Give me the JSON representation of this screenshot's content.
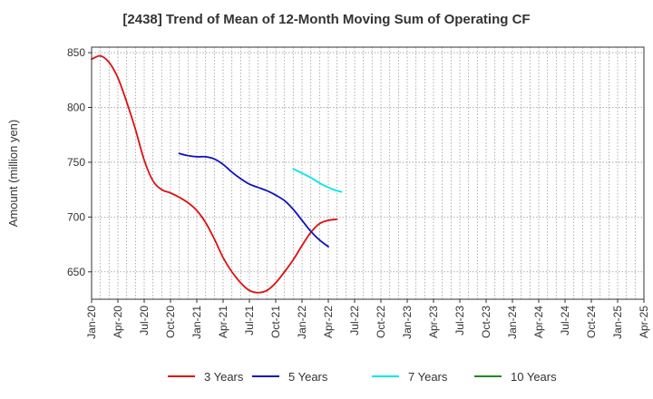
{
  "chart_data": {
    "type": "line",
    "title": "[2438]  Trend of Mean of 12-Month Moving Sum of Operating CF",
    "ylabel": "Amount (million yen)",
    "xlabel": "",
    "ylim": [
      625,
      855
    ],
    "yticks": [
      650,
      700,
      750,
      800,
      850
    ],
    "categories": [
      "Jan-20",
      "Apr-20",
      "Jul-20",
      "Oct-20",
      "Jan-21",
      "Apr-21",
      "Jul-21",
      "Oct-21",
      "Jan-22",
      "Apr-22",
      "Jul-22",
      "Oct-22",
      "Jan-23",
      "Apr-23",
      "Jul-23",
      "Oct-23",
      "Jan-24",
      "Apr-24",
      "Jul-24",
      "Oct-24",
      "Jan-25",
      "Apr-25"
    ],
    "grid": true,
    "legend_position": "bottom",
    "series": [
      {
        "name": "3 Years",
        "color": "#dd1111",
        "points": [
          {
            "x": 0,
            "y": 844
          },
          {
            "x": 1,
            "y": 847
          },
          {
            "x": 2,
            "y": 841
          },
          {
            "x": 3,
            "y": 827
          },
          {
            "x": 4,
            "y": 805
          },
          {
            "x": 5,
            "y": 780
          },
          {
            "x": 6,
            "y": 752
          },
          {
            "x": 7,
            "y": 733
          },
          {
            "x": 8,
            "y": 725
          },
          {
            "x": 9,
            "y": 722
          },
          {
            "x": 10,
            "y": 718
          },
          {
            "x": 11,
            "y": 713
          },
          {
            "x": 12,
            "y": 706
          },
          {
            "x": 13,
            "y": 695
          },
          {
            "x": 14,
            "y": 680
          },
          {
            "x": 15,
            "y": 663
          },
          {
            "x": 16,
            "y": 650
          },
          {
            "x": 17,
            "y": 640
          },
          {
            "x": 18,
            "y": 633
          },
          {
            "x": 19,
            "y": 631
          },
          {
            "x": 20,
            "y": 633
          },
          {
            "x": 21,
            "y": 640
          },
          {
            "x": 22,
            "y": 650
          },
          {
            "x": 23,
            "y": 661
          },
          {
            "x": 24,
            "y": 674
          },
          {
            "x": 25,
            "y": 686
          },
          {
            "x": 26,
            "y": 694
          },
          {
            "x": 27,
            "y": 697
          },
          {
            "x": 28,
            "y": 698
          }
        ]
      },
      {
        "name": "5 Years",
        "color": "#1111bb",
        "points": [
          {
            "x": 10,
            "y": 758
          },
          {
            "x": 11,
            "y": 756
          },
          {
            "x": 12,
            "y": 755
          },
          {
            "x": 13,
            "y": 755
          },
          {
            "x": 14,
            "y": 753
          },
          {
            "x": 15,
            "y": 748
          },
          {
            "x": 16,
            "y": 741
          },
          {
            "x": 17,
            "y": 735
          },
          {
            "x": 18,
            "y": 730
          },
          {
            "x": 19,
            "y": 727
          },
          {
            "x": 20,
            "y": 724
          },
          {
            "x": 21,
            "y": 720
          },
          {
            "x": 22,
            "y": 715
          },
          {
            "x": 23,
            "y": 707
          },
          {
            "x": 24,
            "y": 697
          },
          {
            "x": 25,
            "y": 687
          },
          {
            "x": 26,
            "y": 679
          },
          {
            "x": 27,
            "y": 673
          }
        ]
      },
      {
        "name": "7 Years",
        "color": "#00e5ee",
        "points": [
          {
            "x": 23,
            "y": 744
          },
          {
            "x": 24,
            "y": 740
          },
          {
            "x": 25,
            "y": 736
          },
          {
            "x": 26,
            "y": 731
          },
          {
            "x": 27,
            "y": 727
          },
          {
            "x": 28,
            "y": 724
          },
          {
            "x": 28.5,
            "y": 723
          }
        ]
      },
      {
        "name": "10 Years",
        "color": "#228822",
        "points": []
      }
    ]
  }
}
